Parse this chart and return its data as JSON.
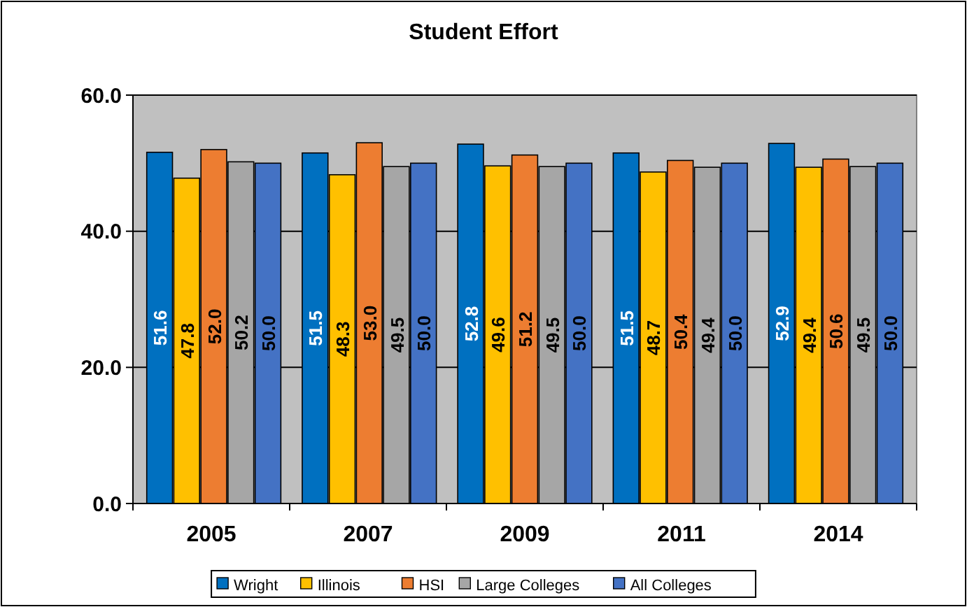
{
  "chart_data": {
    "type": "bar",
    "title": "Student Effort",
    "categories": [
      "2005",
      "2007",
      "2009",
      "2011",
      "2014"
    ],
    "series": [
      {
        "name": "Wright",
        "color": "#0070c0",
        "values": [
          51.6,
          51.5,
          52.8,
          51.5,
          52.9
        ],
        "value_labels": [
          "51.6",
          "51.5",
          "52.8",
          "51.5",
          "52.9"
        ]
      },
      {
        "name": "Illinois",
        "color": "#ffc000",
        "values": [
          47.8,
          48.3,
          49.6,
          48.7,
          49.4
        ],
        "value_labels": [
          "47.8",
          "48.3",
          "49.6",
          "48.7",
          "49.4"
        ]
      },
      {
        "name": "HSI",
        "color": "#ed7d31",
        "values": [
          52,
          53,
          51.2,
          50.4,
          50.6
        ],
        "value_labels": [
          "52.0",
          "53.0",
          "51.2",
          "50.4",
          "50.6"
        ]
      },
      {
        "name": "Large Colleges",
        "color": "#a6a6a6",
        "values": [
          50.2,
          49.5,
          49.5,
          49.4,
          49.5
        ],
        "value_labels": [
          "50.2",
          "49.5",
          "49.5",
          "49.4",
          "49.5"
        ]
      },
      {
        "name": "All Colleges",
        "color": "#4472c4",
        "values": [
          50,
          50,
          50,
          50,
          50
        ],
        "value_labels": [
          "50.0",
          "50.0",
          "50.0",
          "50.0",
          "50.0"
        ]
      }
    ],
    "ylim": [
      0,
      60
    ],
    "yticks": [
      {
        "value": 0,
        "label": "0.0"
      },
      {
        "value": 20,
        "label": "20.0"
      },
      {
        "value": 40,
        "label": "40.0"
      },
      {
        "value": 60,
        "label": "60.0"
      }
    ],
    "grid": "y",
    "legend": "bottom"
  }
}
